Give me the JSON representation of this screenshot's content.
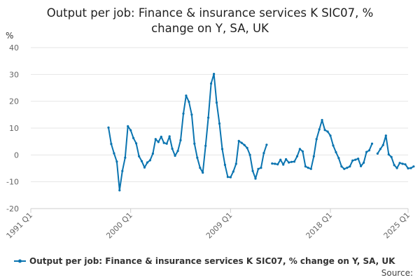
{
  "chart_data": {
    "type": "line",
    "title": "Output per job: Finance & insurance services K SIC07, % change on Y, SA, UK",
    "title_lines": [
      "Output per job: Finance & insurance services K SIC07, %",
      "change on Y, SA, UK"
    ],
    "ylabel": "%",
    "ylim": [
      -20,
      40
    ],
    "yticks": [
      -20,
      -10,
      0,
      10,
      20,
      30,
      40
    ],
    "xlim": [
      1991.0,
      2025.0
    ],
    "xticks": [
      {
        "label": "1991 Q1",
        "value": 1991.0
      },
      {
        "label": "2000 Q1",
        "value": 2000.0
      },
      {
        "label": "2009 Q1",
        "value": 2009.0
      },
      {
        "label": "2018 Q1",
        "value": 2018.0
      },
      {
        "label": "2025 Q1",
        "value": 2025.0
      }
    ],
    "grid": "horizontal",
    "legend_position": "bottom",
    "series": [
      {
        "name": "Output per job: Finance & insurance services K SIC07, % change on Y, SA, UK",
        "color": "#0a74b0",
        "segments": [
          [
            [
              1998.0,
              10.2
            ],
            [
              1998.25,
              4.1
            ],
            [
              1998.5,
              0.6
            ],
            [
              1998.75,
              -2.5
            ],
            [
              1999.0,
              -13.2
            ],
            [
              1999.25,
              -6.0
            ],
            [
              1999.5,
              -1.0
            ],
            [
              1999.75,
              10.7
            ],
            [
              2000.0,
              9.2
            ],
            [
              2000.25,
              6.3
            ],
            [
              2000.5,
              4.3
            ],
            [
              2000.75,
              -0.5
            ],
            [
              2001.0,
              -2.3
            ],
            [
              2001.25,
              -4.7
            ],
            [
              2001.5,
              -2.8
            ],
            [
              2001.75,
              -2.0
            ],
            [
              2002.0,
              0.5
            ],
            [
              2002.25,
              5.9
            ],
            [
              2002.5,
              4.8
            ],
            [
              2002.75,
              6.8
            ],
            [
              2003.0,
              4.5
            ],
            [
              2003.25,
              4.2
            ],
            [
              2003.5,
              6.9
            ],
            [
              2003.75,
              2.3
            ],
            [
              2004.0,
              -0.3
            ],
            [
              2004.25,
              1.5
            ],
            [
              2004.5,
              5.5
            ],
            [
              2004.75,
              15.4
            ],
            [
              2005.0,
              22.1
            ],
            [
              2005.25,
              19.8
            ],
            [
              2005.5,
              15.0
            ],
            [
              2005.75,
              4.2
            ],
            [
              2006.0,
              -1.0
            ],
            [
              2006.25,
              -4.8
            ],
            [
              2006.5,
              -6.6
            ],
            [
              2006.75,
              3.4
            ],
            [
              2007.0,
              13.9
            ],
            [
              2007.25,
              26.6
            ],
            [
              2007.5,
              30.2
            ],
            [
              2007.75,
              19.5
            ],
            [
              2008.0,
              11.7
            ],
            [
              2008.25,
              2.2
            ],
            [
              2008.5,
              -3.7
            ],
            [
              2008.75,
              -8.2
            ],
            [
              2009.0,
              -8.3
            ],
            [
              2009.25,
              -6.2
            ],
            [
              2009.5,
              -3.3
            ],
            [
              2009.75,
              5.2
            ],
            [
              2010.0,
              4.5
            ],
            [
              2010.25,
              3.7
            ],
            [
              2010.5,
              2.6
            ],
            [
              2010.75,
              0.0
            ],
            [
              2011.0,
              -6.0
            ],
            [
              2011.25,
              -8.8
            ],
            [
              2011.5,
              -5.2
            ],
            [
              2011.75,
              -4.8
            ],
            [
              2012.0,
              0.7
            ],
            [
              2012.25,
              3.8
            ]
          ],
          [
            [
              2012.75,
              -3.2
            ],
            [
              2013.0,
              -3.3
            ],
            [
              2013.25,
              -3.5
            ],
            [
              2013.5,
              -1.8
            ],
            [
              2013.75,
              -3.6
            ],
            [
              2014.0,
              -1.6
            ],
            [
              2014.25,
              -2.8
            ],
            [
              2014.5,
              -2.6
            ],
            [
              2014.75,
              -2.5
            ],
            [
              2015.0,
              -0.5
            ],
            [
              2015.25,
              2.2
            ],
            [
              2015.5,
              1.3
            ],
            [
              2015.75,
              -4.3
            ],
            [
              2016.0,
              -4.8
            ],
            [
              2016.25,
              -5.2
            ],
            [
              2016.5,
              -0.5
            ],
            [
              2016.75,
              5.9
            ],
            [
              2017.0,
              9.5
            ],
            [
              2017.25,
              13.0
            ],
            [
              2017.5,
              9.3
            ],
            [
              2017.75,
              8.7
            ],
            [
              2018.0,
              7.2
            ],
            [
              2018.25,
              3.5
            ],
            [
              2018.5,
              1.0
            ],
            [
              2018.75,
              -1.2
            ],
            [
              2019.0,
              -4.3
            ],
            [
              2019.25,
              -5.2
            ],
            [
              2019.5,
              -4.8
            ],
            [
              2019.75,
              -4.3
            ],
            [
              2020.0,
              -2.1
            ],
            [
              2020.25,
              -1.8
            ],
            [
              2020.5,
              -1.4
            ],
            [
              2020.75,
              -4.2
            ],
            [
              2021.0,
              -2.9
            ],
            [
              2021.25,
              1.1
            ],
            [
              2021.5,
              1.7
            ],
            [
              2021.75,
              4.2
            ]
          ],
          [
            [
              2022.25,
              0.5
            ],
            [
              2022.5,
              2.2
            ],
            [
              2022.75,
              3.7
            ],
            [
              2023.0,
              7.2
            ],
            [
              2023.25,
              0.2
            ],
            [
              2023.5,
              -0.8
            ],
            [
              2023.75,
              -3.8
            ],
            [
              2024.0,
              -4.9
            ],
            [
              2024.25,
              -3.0
            ],
            [
              2024.5,
              -3.3
            ],
            [
              2024.75,
              -3.5
            ],
            [
              2025.0,
              -5.0
            ],
            [
              2025.25,
              -4.9
            ],
            [
              2025.5,
              -4.3
            ]
          ]
        ]
      }
    ]
  },
  "source": {
    "label": "Source:"
  }
}
